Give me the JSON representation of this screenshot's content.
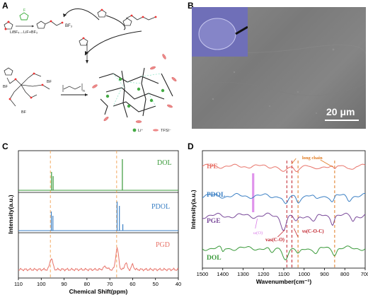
{
  "panels": {
    "A": {
      "label": "A",
      "reaction_top": "LiBF₄→LiF+BF₃",
      "bf3": "BF₃",
      "n": "n",
      "legend_li": "Li⁺",
      "legend_tfsi": "TFSI⁻"
    },
    "B": {
      "label": "B",
      "scale_bar": "20 μm"
    },
    "C": {
      "label": "C",
      "ylabel": "Intensity(a.u.)",
      "xlabel": "Chemical Shift(ppm)",
      "xticks": [
        "110",
        "100",
        "90",
        "80",
        "70",
        "60",
        "50",
        "40"
      ],
      "series_labels": [
        "DOL",
        "PDOL",
        "PGD"
      ],
      "colors": {
        "DOL": "#3a9a3a",
        "PDOL": "#3a7fc4",
        "PGD": "#e8746a",
        "guide": "#f0a050"
      }
    },
    "D": {
      "label": "D",
      "ylabel": "Intensity(a.u.)",
      "xlabel": "Wavenumber(cm⁻¹)",
      "xticks": [
        "1500",
        "1400",
        "1300",
        "1200",
        "1100",
        "1000",
        "900",
        "800",
        "700"
      ],
      "series_labels": [
        "IPE",
        "PDOL",
        "PGE",
        "DOL"
      ],
      "annot_long_chain": "long chain",
      "annot_vas": "νas(C-O)",
      "annot_vs": "νs(C-O-C)",
      "annot_delta": "ω(O)",
      "colors": {
        "IPE": "#e8746a",
        "PDOL": "#3a7fc4",
        "PGE": "#7a4a9a",
        "DOL": "#3a9a3a",
        "band": "#d97fe8",
        "red": "#c0202a",
        "orange": "#e07a20"
      }
    }
  },
  "chart_data": [
    {
      "type": "line",
      "panel": "C",
      "xlabel": "Chemical Shift(ppm)",
      "ylabel": "Intensity(a.u.)",
      "xlim": [
        110,
        40
      ],
      "series": [
        {
          "name": "DOL",
          "peaks_ppm": [
            95.5,
            94.8,
            64.5
          ]
        },
        {
          "name": "PDOL",
          "peaks_ppm": [
            95.6,
            94.9,
            66.8,
            64.3
          ]
        },
        {
          "name": "PGD",
          "peaks_ppm": [
            95.5,
            66.8,
            63.0,
            60.0
          ]
        }
      ],
      "guides_ppm": [
        96,
        67
      ]
    },
    {
      "type": "line",
      "panel": "D",
      "xlabel": "Wavenumber(cm⁻¹)",
      "ylabel": "Intensity(a.u.)",
      "xlim": [
        1500,
        700
      ],
      "series": [
        {
          "name": "IPE"
        },
        {
          "name": "PDOL"
        },
        {
          "name": "PGE"
        },
        {
          "name": "DOL"
        }
      ],
      "guides_cm": [
        1085,
        1060,
        1030,
        850
      ],
      "band_cm": [
        1255,
        1245
      ]
    }
  ]
}
